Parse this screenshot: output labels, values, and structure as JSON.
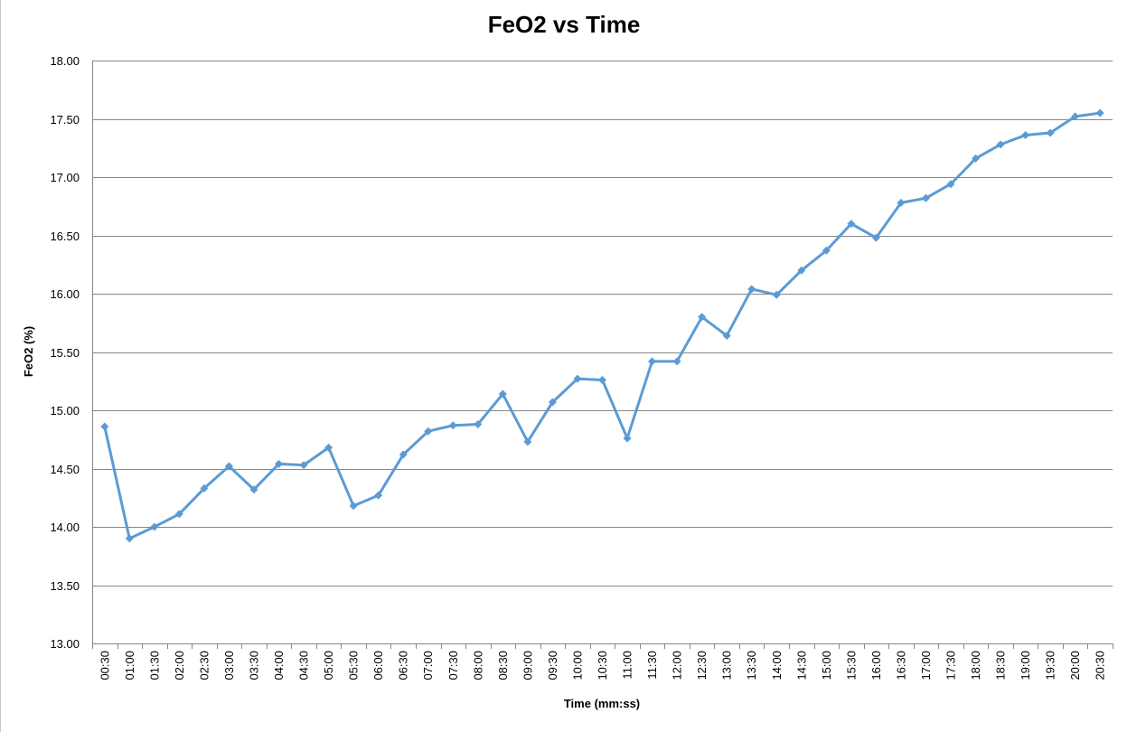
{
  "chart_data": {
    "type": "line",
    "title": "FeO2 vs Time",
    "xlabel": "Time (mm:ss)",
    "ylabel": "FeO2 (%)",
    "ylim": [
      13.0,
      18.0
    ],
    "y_ticks": [
      "13.00",
      "13.50",
      "14.00",
      "14.50",
      "15.00",
      "15.50",
      "16.00",
      "16.50",
      "17.00",
      "17.50",
      "18.00"
    ],
    "grid": true,
    "legend": "none",
    "categories": [
      "00:30",
      "01:00",
      "01:30",
      "02:00",
      "02:30",
      "03:00",
      "03:30",
      "04:00",
      "04:30",
      "05:00",
      "05:30",
      "06:00",
      "06:30",
      "07:00",
      "07:30",
      "08:00",
      "08:30",
      "09:00",
      "09:30",
      "10:00",
      "10:30",
      "11:00",
      "11:30",
      "12:00",
      "12:30",
      "13:00",
      "13:30",
      "14:00",
      "14:30",
      "15:00",
      "15:30",
      "16:00",
      "16:30",
      "17:00",
      "17:30",
      "18:00",
      "18:30",
      "19:00",
      "19:30",
      "20:00",
      "20:30"
    ],
    "series": [
      {
        "color": "#5b9bd5",
        "marker": "diamond",
        "values": [
          14.86,
          13.9,
          14.0,
          14.11,
          14.33,
          14.52,
          14.32,
          14.54,
          14.53,
          14.68,
          14.18,
          14.27,
          14.62,
          14.82,
          14.87,
          14.88,
          15.14,
          14.73,
          15.07,
          15.27,
          15.26,
          14.76,
          15.42,
          15.42,
          15.8,
          15.64,
          16.04,
          15.99,
          16.2,
          16.37,
          16.6,
          16.48,
          16.78,
          16.82,
          16.94,
          17.16,
          17.28,
          17.36,
          17.38,
          17.52,
          17.55
        ]
      }
    ]
  }
}
